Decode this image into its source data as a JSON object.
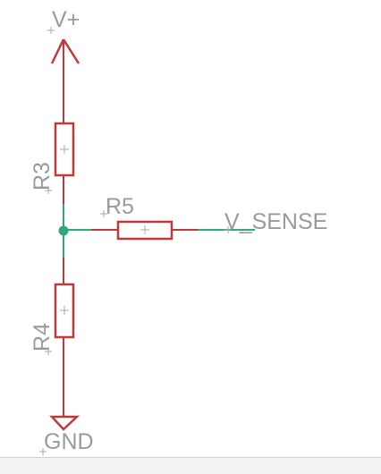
{
  "schematic": {
    "supply_label": "V+",
    "ground_label": "GND",
    "output_label": "V_SENSE",
    "components": [
      {
        "ref": "R3",
        "type": "resistor"
      },
      {
        "ref": "R4",
        "type": "resistor"
      },
      {
        "ref": "R5",
        "type": "resistor"
      }
    ]
  },
  "colors": {
    "wire": "#2fa87c",
    "part": "#c0393b",
    "label": "#9a9a9a",
    "junction": "#2fa87c"
  }
}
